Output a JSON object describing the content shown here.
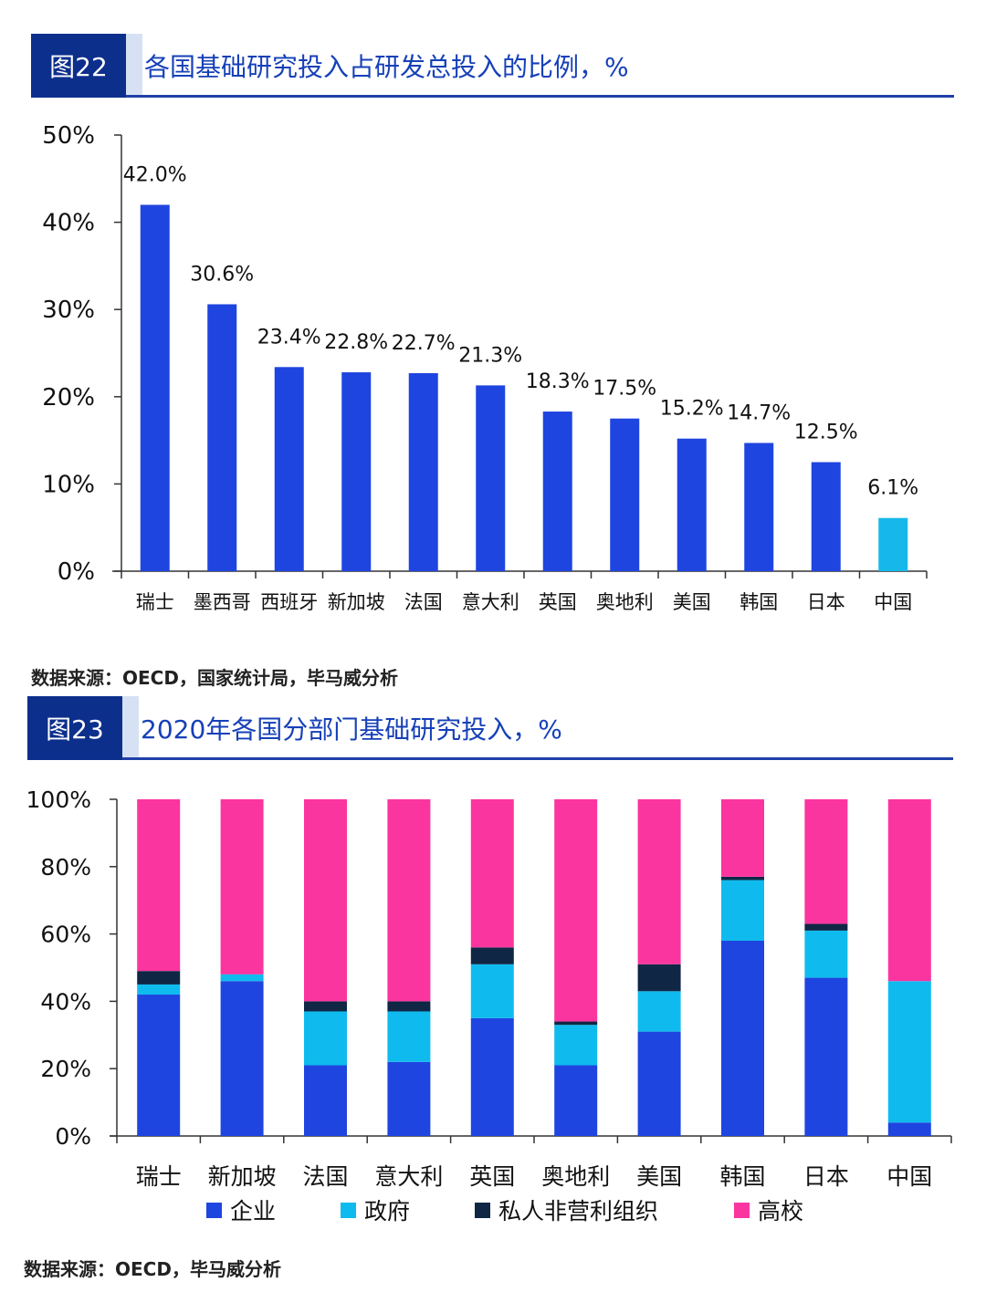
{
  "figures": [
    {
      "tag": "图22",
      "title": "各国基础研究投入占研发总投入的比例，%",
      "source": "数据来源：OECD，国家统计局，毕马威分析"
    },
    {
      "tag": "图23",
      "title": "2020年各国分部门基础研究投入，%",
      "source": "数据来源：OECD，毕马威分析"
    }
  ],
  "chart_data": [
    {
      "type": "bar",
      "categories": [
        "瑞士",
        "墨西哥",
        "西班牙",
        "新加坡",
        "法国",
        "意大利",
        "英国",
        "奥地利",
        "美国",
        "韩国",
        "日本",
        "中国"
      ],
      "values": [
        42.0,
        30.6,
        23.4,
        22.8,
        22.7,
        21.3,
        18.3,
        17.5,
        15.2,
        14.7,
        12.5,
        6.1
      ],
      "data_labels": [
        "42.0%",
        "30.6%",
        "23.4%",
        "22.8%",
        "22.7%",
        "21.3%",
        "18.3%",
        "17.5%",
        "15.2%",
        "14.7%",
        "12.5%",
        "6.1%"
      ],
      "colors": [
        "#1f45e0",
        "#1f45e0",
        "#1f45e0",
        "#1f45e0",
        "#1f45e0",
        "#1f45e0",
        "#1f45e0",
        "#1f45e0",
        "#1f45e0",
        "#1f45e0",
        "#1f45e0",
        "#16b8ea"
      ],
      "ylim": [
        0,
        50
      ],
      "yticks": [
        "0%",
        "10%",
        "20%",
        "30%",
        "40%",
        "50%"
      ],
      "grid": false,
      "legend": false
    },
    {
      "type": "bar",
      "stacked": true,
      "categories": [
        "瑞士",
        "新加坡",
        "法国",
        "意大利",
        "英国",
        "奥地利",
        "美国",
        "韩国",
        "日本",
        "中国"
      ],
      "series": [
        {
          "name": "企业",
          "color": "#1f45e0",
          "values": [
            42,
            46,
            21,
            22,
            35,
            21,
            31,
            58,
            47,
            4
          ]
        },
        {
          "name": "政府",
          "color": "#0fbbee",
          "values": [
            3,
            2,
            16,
            15,
            16,
            12,
            12,
            18,
            14,
            42
          ]
        },
        {
          "name": "私人非营利组织",
          "color": "#0f2745",
          "values": [
            4,
            0,
            3,
            3,
            5,
            1,
            8,
            1,
            2,
            0
          ]
        },
        {
          "name": "高校",
          "color": "#fb35a0",
          "values": [
            51,
            52,
            60,
            60,
            44,
            66,
            49,
            23,
            37,
            54
          ]
        }
      ],
      "ylim": [
        0,
        100
      ],
      "yticks": [
        "0%",
        "20%",
        "40%",
        "60%",
        "80%",
        "100%"
      ],
      "grid": false,
      "legend": "bottom"
    }
  ]
}
